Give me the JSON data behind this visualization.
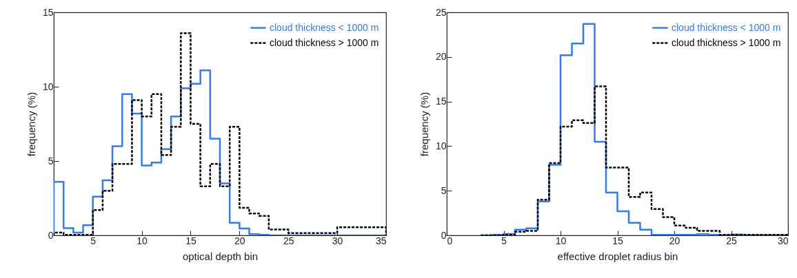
{
  "chart_data": [
    {
      "type": "histogram",
      "xlabel": "optical depth bin",
      "ylabel": "frequency (%)",
      "bins": [
        1,
        2,
        3,
        4,
        5,
        6,
        7,
        8,
        9,
        10,
        11,
        12,
        13,
        14,
        15,
        16,
        17,
        18,
        19,
        20,
        21,
        22,
        23,
        25,
        30,
        35
      ],
      "xlim": [
        1,
        35
      ],
      "xticks": [
        5,
        10,
        15,
        20,
        25,
        30,
        35
      ],
      "ylim": [
        0,
        15
      ],
      "yticks": [
        0,
        5,
        10,
        15
      ],
      "legend": "top right",
      "grid": false,
      "series": [
        {
          "name": "cloud thickness < 1000 m",
          "color": "#2f7bff",
          "line_style": "solid",
          "values": [
            3.6,
            0.49,
            0.19,
            0.68,
            2.6,
            3.7,
            6.0,
            9.5,
            8.2,
            4.7,
            4.9,
            5.8,
            8.0,
            9.9,
            10.2,
            11.1,
            6.5,
            3.5,
            0.85,
            0.46,
            0.08,
            0.03,
            0,
            0,
            0
          ]
        },
        {
          "name": "cloud thickness > 1000 m",
          "color": "#000000",
          "line_style": "dashed",
          "values": [
            0.19,
            0.03,
            0.03,
            0.03,
            1.7,
            3.0,
            4.8,
            4.8,
            9.1,
            8.0,
            9.5,
            5.4,
            7.3,
            13.6,
            7.5,
            3.3,
            4.8,
            3.3,
            7.3,
            1.85,
            1.47,
            1.31,
            0.39,
            0.15,
            0.54
          ]
        }
      ]
    },
    {
      "type": "histogram",
      "xlabel": "effective droplet radius bin",
      "ylabel": "frequency (%)",
      "bins": [
        3,
        4,
        5,
        6,
        7,
        8,
        9,
        10,
        11,
        12,
        13,
        14,
        15,
        16,
        17,
        18,
        19,
        20,
        21,
        22,
        23,
        24,
        25,
        26,
        30
      ],
      "xlim": [
        0,
        30
      ],
      "xticks": [
        0,
        5,
        10,
        15,
        20,
        25,
        30
      ],
      "ylim": [
        0,
        25
      ],
      "yticks": [
        0,
        5,
        10,
        15,
        20,
        25
      ],
      "legend": "top right",
      "grid": false,
      "series": [
        {
          "name": "cloud thickness < 1000 m",
          "color": "#2f7bff",
          "line_style": "solid",
          "values": [
            0,
            0.05,
            0.15,
            0.64,
            0.8,
            3.8,
            7.9,
            20.2,
            21.5,
            23.7,
            10.5,
            4.8,
            2.7,
            1.4,
            0.64,
            0.05,
            0.05,
            0.05,
            0.05,
            0.13,
            0.05,
            0.02,
            0.1,
            0.02
          ]
        },
        {
          "name": "cloud thickness > 1000 m",
          "color": "#000000",
          "line_style": "dashed",
          "values": [
            0,
            0,
            0.05,
            0.4,
            0.5,
            4.0,
            8.1,
            12.2,
            12.9,
            12.6,
            16.7,
            7.6,
            7.6,
            4.3,
            4.8,
            2.95,
            2.05,
            1.1,
            0.85,
            0.5,
            0.5,
            0.05,
            0.05,
            0.05
          ]
        }
      ]
    }
  ]
}
